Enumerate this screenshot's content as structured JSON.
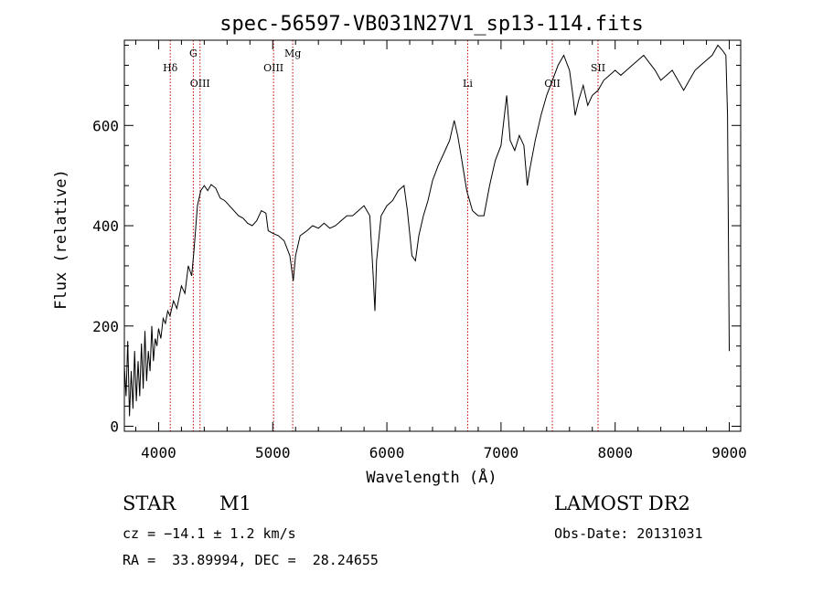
{
  "chart_data": {
    "type": "line",
    "title": "spec-56597-VB031N27V1_sp13-114.fits",
    "xlabel": "Wavelength (Å)",
    "ylabel": "Flux (relative)",
    "xlim": [
      3700,
      9100
    ],
    "ylim": [
      -10,
      770
    ],
    "xticks": [
      4000,
      5000,
      6000,
      7000,
      8000,
      9000
    ],
    "yticks": [
      0,
      200,
      400,
      600
    ],
    "series": [
      {
        "values": [
          [
            3700,
            120
          ],
          [
            3715,
            60
          ],
          [
            3730,
            170
          ],
          [
            3745,
            20
          ],
          [
            3760,
            110
          ],
          [
            3775,
            35
          ],
          [
            3790,
            150
          ],
          [
            3805,
            50
          ],
          [
            3820,
            130
          ],
          [
            3835,
            60
          ],
          [
            3850,
            165
          ],
          [
            3865,
            75
          ],
          [
            3880,
            190
          ],
          [
            3895,
            90
          ],
          [
            3910,
            150
          ],
          [
            3925,
            110
          ],
          [
            3940,
            200
          ],
          [
            3955,
            130
          ],
          [
            3970,
            175
          ],
          [
            3985,
            160
          ],
          [
            4000,
            195
          ],
          [
            4020,
            175
          ],
          [
            4040,
            215
          ],
          [
            4060,
            205
          ],
          [
            4080,
            230
          ],
          [
            4100,
            220
          ],
          [
            4130,
            250
          ],
          [
            4160,
            235
          ],
          [
            4200,
            280
          ],
          [
            4230,
            265
          ],
          [
            4260,
            320
          ],
          [
            4290,
            300
          ],
          [
            4310,
            350
          ],
          [
            4340,
            440
          ],
          [
            4370,
            470
          ],
          [
            4400,
            480
          ],
          [
            4430,
            470
          ],
          [
            4460,
            482
          ],
          [
            4500,
            475
          ],
          [
            4540,
            455
          ],
          [
            4580,
            450
          ],
          [
            4620,
            440
          ],
          [
            4660,
            430
          ],
          [
            4700,
            420
          ],
          [
            4740,
            415
          ],
          [
            4780,
            405
          ],
          [
            4820,
            400
          ],
          [
            4860,
            410
          ],
          [
            4900,
            430
          ],
          [
            4940,
            425
          ],
          [
            4960,
            390
          ],
          [
            5000,
            385
          ],
          [
            5050,
            380
          ],
          [
            5100,
            370
          ],
          [
            5150,
            340
          ],
          [
            5180,
            290
          ],
          [
            5200,
            340
          ],
          [
            5240,
            380
          ],
          [
            5300,
            390
          ],
          [
            5350,
            400
          ],
          [
            5400,
            395
          ],
          [
            5450,
            405
          ],
          [
            5500,
            395
          ],
          [
            5550,
            400
          ],
          [
            5600,
            410
          ],
          [
            5650,
            420
          ],
          [
            5700,
            420
          ],
          [
            5750,
            430
          ],
          [
            5800,
            440
          ],
          [
            5850,
            420
          ],
          [
            5880,
            300
          ],
          [
            5895,
            230
          ],
          [
            5910,
            330
          ],
          [
            5950,
            420
          ],
          [
            6000,
            440
          ],
          [
            6050,
            450
          ],
          [
            6100,
            470
          ],
          [
            6150,
            480
          ],
          [
            6180,
            430
          ],
          [
            6220,
            340
          ],
          [
            6250,
            330
          ],
          [
            6280,
            380
          ],
          [
            6320,
            420
          ],
          [
            6360,
            450
          ],
          [
            6400,
            490
          ],
          [
            6450,
            520
          ],
          [
            6500,
            545
          ],
          [
            6550,
            570
          ],
          [
            6590,
            610
          ],
          [
            6620,
            580
          ],
          [
            6650,
            540
          ],
          [
            6700,
            470
          ],
          [
            6750,
            430
          ],
          [
            6800,
            420
          ],
          [
            6850,
            420
          ],
          [
            6900,
            480
          ],
          [
            6950,
            530
          ],
          [
            7000,
            560
          ],
          [
            7030,
            620
          ],
          [
            7050,
            660
          ],
          [
            7080,
            570
          ],
          [
            7120,
            550
          ],
          [
            7160,
            580
          ],
          [
            7200,
            560
          ],
          [
            7230,
            480
          ],
          [
            7250,
            510
          ],
          [
            7300,
            570
          ],
          [
            7350,
            620
          ],
          [
            7400,
            660
          ],
          [
            7450,
            690
          ],
          [
            7500,
            720
          ],
          [
            7550,
            740
          ],
          [
            7600,
            710
          ],
          [
            7630,
            660
          ],
          [
            7650,
            620
          ],
          [
            7680,
            650
          ],
          [
            7720,
            680
          ],
          [
            7760,
            640
          ],
          [
            7800,
            660
          ],
          [
            7850,
            670
          ],
          [
            7900,
            690
          ],
          [
            7950,
            700
          ],
          [
            8000,
            710
          ],
          [
            8050,
            700
          ],
          [
            8100,
            710
          ],
          [
            8150,
            720
          ],
          [
            8200,
            730
          ],
          [
            8250,
            740
          ],
          [
            8300,
            725
          ],
          [
            8350,
            710
          ],
          [
            8400,
            690
          ],
          [
            8450,
            700
          ],
          [
            8500,
            710
          ],
          [
            8550,
            690
          ],
          [
            8600,
            670
          ],
          [
            8650,
            690
          ],
          [
            8700,
            710
          ],
          [
            8750,
            720
          ],
          [
            8800,
            730
          ],
          [
            8850,
            740
          ],
          [
            8900,
            760
          ],
          [
            8940,
            750
          ],
          [
            8970,
            740
          ],
          [
            8985,
            620
          ],
          [
            9000,
            150
          ]
        ]
      }
    ],
    "ref_lines": [
      {
        "x": 4102,
        "label": "Hδ",
        "level": "top"
      },
      {
        "x": 4304,
        "label": "G",
        "level": "upper"
      },
      {
        "x": 4363,
        "label": "OIII",
        "level": "lower"
      },
      {
        "x": 5007,
        "label": "OIII",
        "level": "top"
      },
      {
        "x": 5175,
        "label": "Mg",
        "level": "upper"
      },
      {
        "x": 6708,
        "label": "Li",
        "level": "lower"
      },
      {
        "x": 7450,
        "label": "OII",
        "level": "lower"
      },
      {
        "x": 7850,
        "label": "SII",
        "level": "top"
      }
    ],
    "ref_line_color": "#c00000",
    "grid": false,
    "legend": "none"
  },
  "info": {
    "object_class": "STAR",
    "subclass": "M1",
    "survey": "LAMOST DR2",
    "cz": "cz = −14.1 ± 1.2 km/s",
    "obs_date": "Obs-Date: 20131031",
    "coords": "RA =  33.89994, DEC =  28.24655"
  }
}
